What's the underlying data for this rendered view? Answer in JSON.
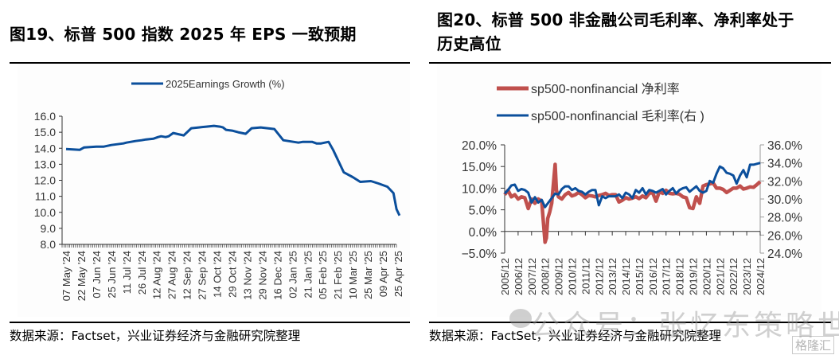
{
  "left": {
    "title": "图19、标普 500 指数 2025 年 EPS 一致预期",
    "source": "数据来源：Factset，兴业证券经济与金融研究院整理"
  },
  "right": {
    "title_line1": "图20、标普 500 非金融公司毛利率、净利率处于",
    "title_line2": "历史高位",
    "source": "数据来源：FactSet，兴业证券经济与金融研究院整理"
  },
  "watermark": {
    "text": "公众号：张忆东策略世界",
    "corner": "格隆汇"
  },
  "chart_data": [
    {
      "type": "line",
      "title": "",
      "legend": [
        "2025Earnings Growth (%)"
      ],
      "legend_position": "top-center",
      "xlabel": "",
      "ylabel": "",
      "ylim": [
        8.0,
        16.0
      ],
      "yticks": [
        "16.0",
        "15.0",
        "14.0",
        "13.0",
        "12.0",
        "11.0",
        "10.0",
        "9.0",
        "8.0"
      ],
      "x_tick_labels": [
        "07 May '24",
        "22 May '24",
        "07 Jun '24",
        "25 Jun '24",
        "11 Jul '24",
        "26 Jul '24",
        "12 Aug '24",
        "27 Aug '24",
        "12 Sep '24",
        "27 Sep '24",
        "14 Oct '24",
        "29 Oct '24",
        "13 Nov '24",
        "29 Nov '24",
        "16 Dec '24",
        "02 Jan '25",
        "21 Jan '25",
        "05 Feb '25",
        "21 Feb '25",
        "10 Mar '25",
        "25 Mar '25",
        "09 Apr '25",
        "25 Apr '25"
      ],
      "grid": false,
      "series": [
        {
          "name": "2025Earnings Growth (%)",
          "color": "#0b4f9c",
          "x": [
            0,
            0.9,
            1.2,
            2.0,
            2.5,
            3.0,
            3.8,
            4.0,
            4.6,
            5.0,
            5.3,
            5.8,
            6.1,
            6.3,
            6.6,
            6.8,
            7.1,
            7.8,
            8.3,
            8.8,
            9.3,
            9.8,
            10.2,
            10.4,
            10.6,
            11.0,
            11.2,
            11.4,
            11.9,
            12.3,
            12.9,
            13.8,
            14.4,
            15.4,
            15.7,
            16.0,
            16.3,
            16.6,
            16.9,
            17.4,
            17.7,
            18.4,
            19.0,
            19.5,
            20.2,
            20.7,
            21.3,
            21.7,
            21.9,
            22.1
          ],
          "values": [
            13.95,
            13.9,
            14.05,
            14.1,
            14.1,
            14.2,
            14.3,
            14.35,
            14.45,
            14.5,
            14.55,
            14.6,
            14.7,
            14.75,
            14.7,
            14.75,
            14.95,
            14.8,
            15.25,
            15.3,
            15.35,
            15.4,
            15.35,
            15.3,
            15.15,
            15.1,
            15.05,
            15.0,
            14.9,
            15.25,
            15.3,
            15.2,
            14.5,
            14.35,
            14.4,
            14.4,
            14.4,
            14.3,
            14.3,
            14.4,
            13.9,
            12.5,
            12.2,
            11.9,
            11.95,
            11.8,
            11.6,
            11.2,
            10.2,
            9.8
          ]
        }
      ]
    },
    {
      "type": "line",
      "title": "",
      "legend": [
        "sp500-nonfinancial 净利率",
        "sp500-nonfinancial 毛利率(右 )"
      ],
      "legend_position": "top-center",
      "xlabel": "",
      "ylabel": "",
      "ylim": [
        -5.0,
        20.0
      ],
      "y2lim": [
        24.0,
        36.0
      ],
      "yticks": [
        "20.0%",
        "15.0%",
        "10.0%",
        "5.0%",
        "0.0%",
        "-5.0%"
      ],
      "y2ticks": [
        "36.0%",
        "34.0%",
        "32.0%",
        "30.0%",
        "28.0%",
        "26.0%",
        "24.0%"
      ],
      "x_tick_labels": [
        "2005/12",
        "2006/12",
        "2007/12",
        "2008/12",
        "2009/12",
        "2010/12",
        "2011/12",
        "2012/12",
        "2013/12",
        "2014/12",
        "2015/12",
        "2016/12",
        "2017/12",
        "2018/12",
        "2019/12",
        "2020/12",
        "2021/12",
        "2022/12",
        "2023/12",
        "2024/12"
      ],
      "grid": false,
      "series": [
        {
          "name": "sp500-nonfinancial 净利率",
          "axis": "left",
          "color": "#c0504d",
          "x": [
            0,
            0.25,
            0.5,
            0.75,
            1.0,
            1.25,
            1.5,
            1.75,
            2.0,
            2.25,
            2.5,
            2.75,
            3.0,
            3.1,
            3.2,
            3.35,
            3.5,
            3.75,
            3.85,
            4.0,
            4.25,
            4.5,
            4.75,
            5.0,
            5.25,
            5.5,
            5.75,
            6.0,
            6.25,
            6.5,
            6.75,
            7.0,
            7.25,
            7.5,
            7.75,
            8.0,
            8.25,
            8.5,
            8.75,
            9.0,
            9.25,
            9.5,
            9.75,
            10.0,
            10.25,
            10.5,
            10.75,
            11.0,
            11.25,
            11.5,
            11.75,
            12.0,
            12.25,
            12.5,
            12.75,
            13.0,
            13.25,
            13.5,
            13.75,
            14.0,
            14.25,
            14.5,
            14.75,
            15.0,
            15.25,
            15.5,
            15.75,
            16.0,
            16.25,
            16.5,
            16.75,
            17.0,
            17.25,
            17.5,
            17.75,
            18.0,
            18.25,
            18.5,
            18.75,
            19.0
          ],
          "values": [
            8.5,
            9.5,
            8.0,
            8.5,
            7.5,
            8.0,
            7.8,
            5.3,
            7.5,
            6.5,
            7.5,
            7.0,
            -2.5,
            -1.5,
            3.0,
            4.5,
            6.5,
            15.5,
            9.5,
            8.0,
            7.5,
            8.5,
            9.0,
            8.2,
            8.5,
            9.0,
            8.5,
            7.8,
            8.3,
            8.2,
            8.0,
            8.3,
            8.5,
            8.8,
            8.3,
            8.5,
            8.5,
            6.8,
            7.2,
            7.8,
            7.5,
            7.7,
            8.0,
            7.6,
            8.2,
            7.8,
            8.8,
            9.0,
            7.0,
            9.2,
            8.8,
            9.5,
            8.8,
            8.7,
            8.8,
            8.6,
            8.0,
            7.8,
            5.5,
            5.3,
            8.0,
            6.5,
            10.5,
            10.8,
            11.0,
            11.2,
            10.0,
            10.0,
            9.7,
            9.0,
            9.5,
            10.0,
            10.0,
            10.5,
            9.8,
            10.0,
            10.3,
            10.2,
            10.8,
            11.5
          ]
        },
        {
          "name": "sp500-nonfinancial 毛利率(右 )",
          "axis": "right",
          "color": "#0b4f9c",
          "x": [
            0,
            0.25,
            0.5,
            0.75,
            1.0,
            1.25,
            1.5,
            1.75,
            2.0,
            2.25,
            2.5,
            2.75,
            3.0,
            3.25,
            3.5,
            3.75,
            4.0,
            4.25,
            4.5,
            4.75,
            5.0,
            5.25,
            5.5,
            5.75,
            6.0,
            6.25,
            6.5,
            6.75,
            7.0,
            7.25,
            7.5,
            7.75,
            8.0,
            8.25,
            8.5,
            8.75,
            9.0,
            9.25,
            9.5,
            9.75,
            10.0,
            10.25,
            10.5,
            10.75,
            11.0,
            11.25,
            11.5,
            11.75,
            12.0,
            12.25,
            12.5,
            12.75,
            13.0,
            13.25,
            13.5,
            13.75,
            14.0,
            14.25,
            14.5,
            14.75,
            15.0,
            15.25,
            15.5,
            15.75,
            16.0,
            16.25,
            16.5,
            16.75,
            17.0,
            17.25,
            17.5,
            17.75,
            18.0,
            18.25,
            18.5,
            18.75,
            19.0
          ],
          "values": [
            30.6,
            31.0,
            31.5,
            31.6,
            30.9,
            31.1,
            31.0,
            30.7,
            29.6,
            30.2,
            29.6,
            29.9,
            29.1,
            29.6,
            30.1,
            30.6,
            30.5,
            31.1,
            31.4,
            31.4,
            31.0,
            31.2,
            30.9,
            30.8,
            30.5,
            30.8,
            31.0,
            31.0,
            29.3,
            30.3,
            30.1,
            30.3,
            30.3,
            30.3,
            30.5,
            30.1,
            30.7,
            30.5,
            30.1,
            31.0,
            30.7,
            31.2,
            30.5,
            31.0,
            30.9,
            30.7,
            30.9,
            31.1,
            30.5,
            30.9,
            31.2,
            30.6,
            31.0,
            31.2,
            31.3,
            30.8,
            31.1,
            31.4,
            30.9,
            30.7,
            30.9,
            32.0,
            31.8,
            32.8,
            33.6,
            33.4,
            32.9,
            32.8,
            32.6,
            31.7,
            32.6,
            33.2,
            32.4,
            33.8,
            33.8,
            33.9,
            34.0
          ]
        }
      ]
    }
  ]
}
